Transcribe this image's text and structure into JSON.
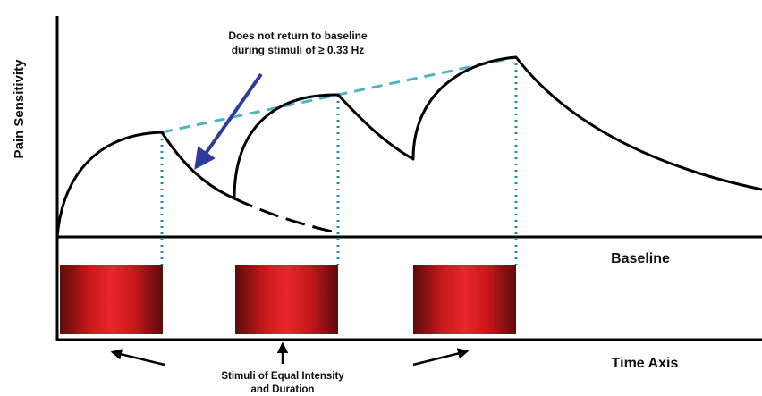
{
  "diagram": {
    "y_axis_label": "Pain Sensitivity",
    "baseline_label": "Baseline",
    "time_axis_label": "Time Axis",
    "annotation_line1": "Does not return to baseline",
    "annotation_line2": "during stimuli of ≥ 0.33 Hz",
    "stimuli_label_line1": "Stimuli of Equal Intensity",
    "stimuli_label_line2": "and Duration",
    "stimulus_count": 3,
    "colors": {
      "curve": "#000000",
      "envelope_dashed": "#4fb3c3",
      "stimulus_drop_dotted": "#1f8f9a",
      "annotation_arrow": "#2f3b9c",
      "stimulus_center": "#e8262a",
      "stimulus_edge": "#5a0c0c"
    }
  }
}
